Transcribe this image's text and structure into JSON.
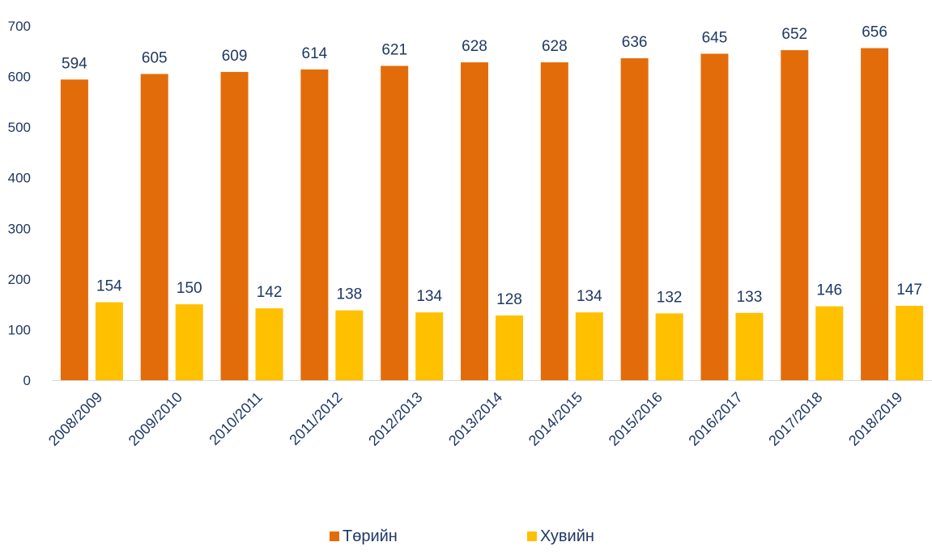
{
  "chart_data": {
    "type": "bar",
    "categories": [
      "2008/2009",
      "2009/2010",
      "2010/2011",
      "2011/2012",
      "2012/2013",
      "2013/2014",
      "2014/2015",
      "2015/2016",
      "2016/2017",
      "2017/2018",
      "2018/2019"
    ],
    "series": [
      {
        "name": "Төрийн",
        "color": "#E36C0A",
        "values": [
          594,
          605,
          609,
          614,
          621,
          628,
          628,
          636,
          645,
          652,
          656
        ]
      },
      {
        "name": "Хувийн",
        "color": "#FFC000",
        "values": [
          154,
          150,
          142,
          138,
          134,
          128,
          134,
          132,
          133,
          146,
          147
        ]
      }
    ],
    "y_ticks": [
      0,
      100,
      200,
      300,
      400,
      500,
      600,
      700
    ],
    "ylim": [
      0,
      700
    ],
    "grid": false,
    "legend_position": "bottom",
    "label_color": "#1F3864",
    "title": "",
    "xlabel": "",
    "ylabel": ""
  }
}
